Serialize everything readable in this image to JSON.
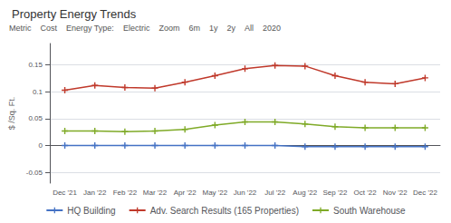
{
  "chart_data": {
    "type": "line",
    "title": "Property Energy Trends",
    "ylabel": "$ /Sq. Ft.",
    "annotations": [
      "Metric",
      "Cost",
      "Energy Type:",
      "Electric",
      "Zoom",
      "6m",
      "1y",
      "2y",
      "All",
      "2020"
    ],
    "categories": [
      "Dec '21",
      "Jan '22",
      "Feb '22",
      "Mar '22",
      "Apr '22",
      "May '22",
      "Jun '22",
      "Jul '22",
      "Aug '22",
      "Sep '22",
      "Oct '22",
      "Nov '22",
      "Dec '22"
    ],
    "series": [
      {
        "name": "HQ Building",
        "color": "#4472c4",
        "values": [
          0.0,
          0.0,
          0.0,
          0.0,
          0.0,
          0.0,
          0.0,
          0.0,
          -0.002,
          -0.002,
          -0.002,
          -0.002,
          -0.002
        ]
      },
      {
        "name": "Adv. Search Results (165 Properties)",
        "color": "#c0392b",
        "values": [
          0.103,
          0.112,
          0.108,
          0.107,
          0.118,
          0.13,
          0.143,
          0.149,
          0.148,
          0.13,
          0.118,
          0.115,
          0.126
        ]
      },
      {
        "name": "South Warehouse",
        "color": "#7faa27",
        "values": [
          0.027,
          0.027,
          0.026,
          0.027,
          0.03,
          0.038,
          0.044,
          0.044,
          0.04,
          0.035,
          0.033,
          0.033,
          0.033
        ]
      }
    ],
    "ylim": [
      -0.07,
      0.19
    ],
    "yticks": [
      -0.05,
      0,
      0.05,
      0.1,
      0.15
    ],
    "grid": true,
    "legend": "bottom",
    "marker": "plus"
  }
}
